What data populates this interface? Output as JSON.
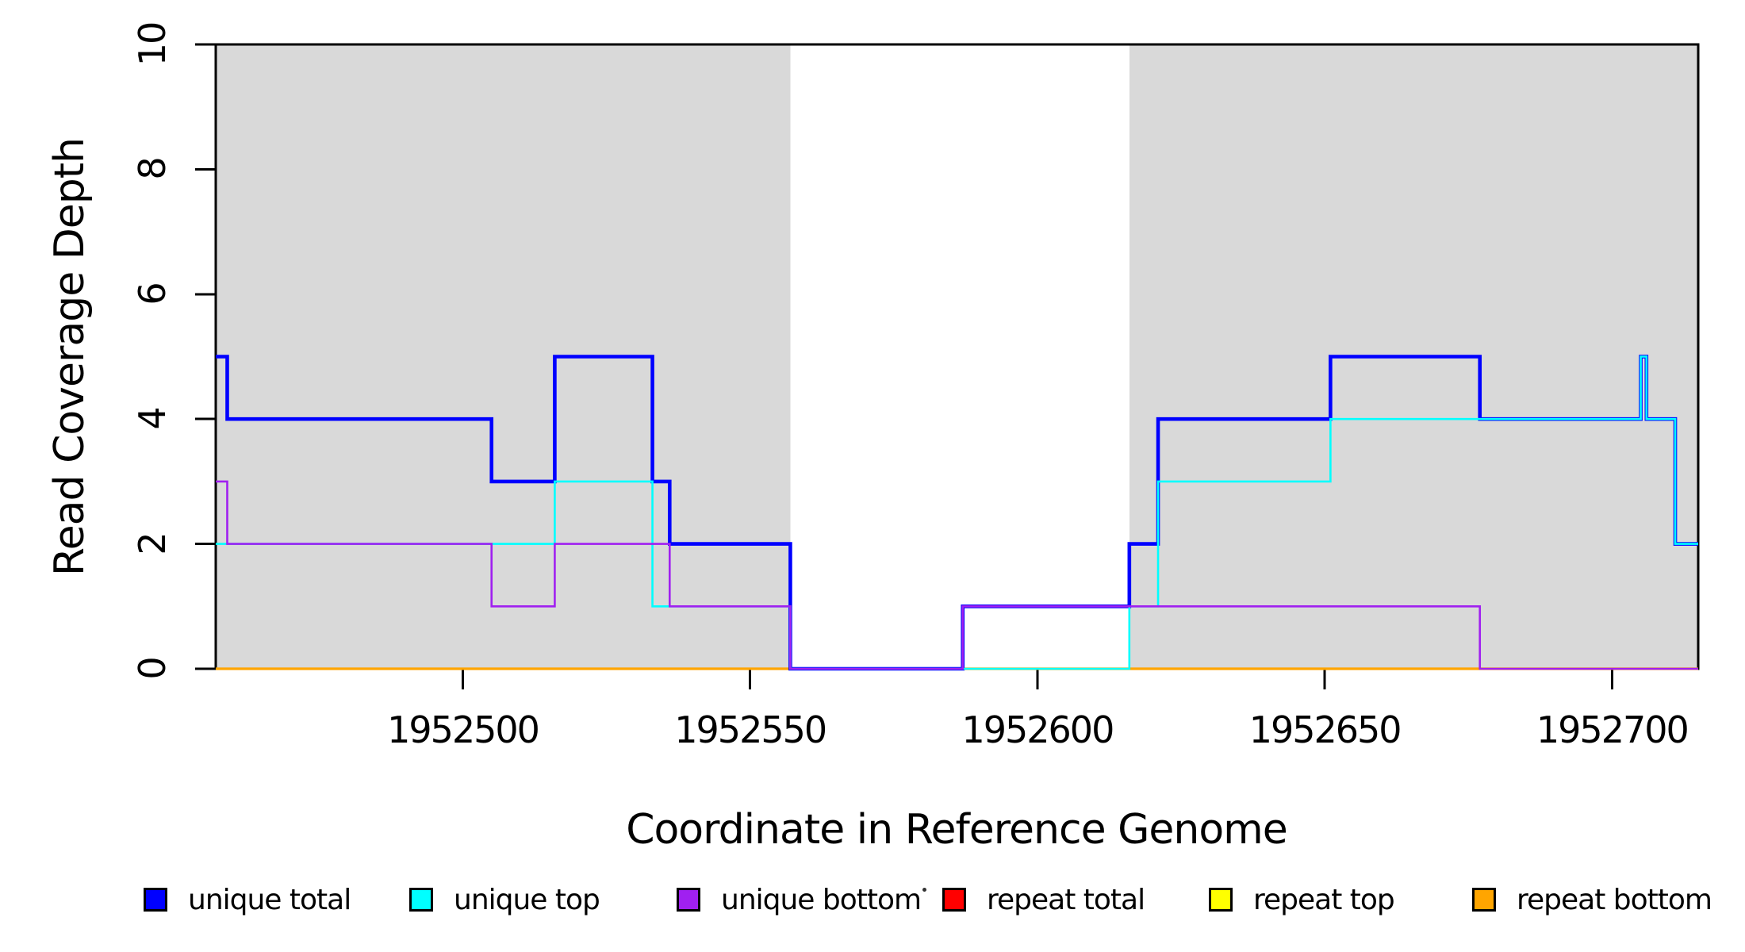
{
  "chart_data": {
    "type": "line",
    "step": true,
    "xlabel": "Coordinate in Reference Genome",
    "ylabel": "Read Coverage Depth",
    "xlim": [
      1952457,
      1952715
    ],
    "ylim": [
      0,
      10
    ],
    "x_ticks": [
      1952500,
      1952550,
      1952600,
      1952650,
      1952700
    ],
    "x_tick_labels": [
      "1952500",
      "1952550",
      "1952600",
      "1952650",
      "1952700"
    ],
    "y_ticks": [
      0,
      2,
      4,
      6,
      8,
      10
    ],
    "y_tick_labels": [
      "0",
      "2",
      "4",
      "6",
      "8",
      "10"
    ],
    "grid": false,
    "shade_color": "#d9d9d9",
    "shaded_regions": [
      [
        1952457,
        1952557
      ],
      [
        1952616,
        1952715
      ]
    ],
    "series": [
      {
        "name": "repeat total",
        "key": "repeat-total",
        "color": "#ff0000",
        "width": 2.6,
        "points": [
          [
            1952457,
            0
          ]
        ]
      },
      {
        "name": "repeat top",
        "key": "repeat-top",
        "color": "#ffff00",
        "width": 2.6,
        "points": [
          [
            1952457,
            0
          ]
        ]
      },
      {
        "name": "repeat bottom",
        "key": "repeat-bottom",
        "color": "#ffa500",
        "width": 3.2,
        "points": [
          [
            1952457,
            0
          ]
        ]
      },
      {
        "name": "unique total",
        "key": "unique-total",
        "color": "#0000ff",
        "width": 4.6,
        "points": [
          [
            1952457,
            5
          ],
          [
            1952459,
            4
          ],
          [
            1952505,
            3
          ],
          [
            1952516,
            5
          ],
          [
            1952533,
            3
          ],
          [
            1952536,
            2
          ],
          [
            1952557,
            0
          ],
          [
            1952587,
            1
          ],
          [
            1952616,
            2
          ],
          [
            1952621,
            4
          ],
          [
            1952651,
            5
          ],
          [
            1952677,
            4
          ],
          [
            1952705,
            5
          ],
          [
            1952706,
            4
          ],
          [
            1952711,
            2
          ]
        ]
      },
      {
        "name": "unique top",
        "key": "unique-top",
        "color": "#00ffff",
        "width": 2.6,
        "points": [
          [
            1952457,
            2
          ],
          [
            1952516,
            3
          ],
          [
            1952533,
            1
          ],
          [
            1952557,
            0
          ],
          [
            1952616,
            1
          ],
          [
            1952621,
            3
          ],
          [
            1952651,
            4
          ],
          [
            1952705,
            5
          ],
          [
            1952706,
            4
          ],
          [
            1952711,
            2
          ]
        ]
      },
      {
        "name": "unique bottom",
        "key": "unique-bottom",
        "color": "#a020f0",
        "width": 2.6,
        "points": [
          [
            1952457,
            3
          ],
          [
            1952459,
            2
          ],
          [
            1952505,
            1
          ],
          [
            1952516,
            2
          ],
          [
            1952536,
            1
          ],
          [
            1952557,
            0
          ],
          [
            1952587,
            1
          ],
          [
            1952677,
            0
          ]
        ]
      }
    ],
    "legend": [
      {
        "label": "unique total",
        "color": "#0000ff"
      },
      {
        "label": "unique top",
        "color": "#00ffff"
      },
      {
        "label": "unique bottom",
        "color": "#a020f0"
      },
      {
        "label": "repeat total",
        "color": "#ff0000"
      },
      {
        "label": "repeat top",
        "color": "#ffff00"
      },
      {
        "label": "repeat bottom",
        "color": "#ffa500"
      }
    ],
    "legend_position": "bottom"
  }
}
